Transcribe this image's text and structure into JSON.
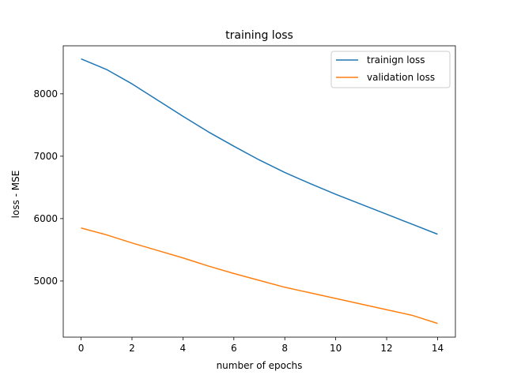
{
  "chart_data": {
    "type": "line",
    "title": "training loss",
    "xlabel": "number of epochs",
    "ylabel": "loss - MSE",
    "xlim": [
      -0.7,
      14.7
    ],
    "ylim": [
      4100,
      8770
    ],
    "xticks": [
      0,
      2,
      4,
      6,
      8,
      10,
      12,
      14
    ],
    "yticks": [
      5000,
      6000,
      7000,
      8000
    ],
    "grid": false,
    "legend_position": "top-right",
    "x": [
      0,
      1,
      2,
      3,
      4,
      5,
      6,
      7,
      8,
      9,
      10,
      11,
      12,
      13,
      14
    ],
    "series": [
      {
        "name": "trainign loss",
        "color": "#1f77b4",
        "values": [
          8560,
          8390,
          8160,
          7900,
          7640,
          7390,
          7160,
          6940,
          6740,
          6560,
          6390,
          6230,
          6070,
          5910,
          5750
        ]
      },
      {
        "name": "validation loss",
        "color": "#ff7f0e",
        "values": [
          5850,
          5740,
          5610,
          5490,
          5370,
          5240,
          5120,
          5010,
          4900,
          4810,
          4720,
          4630,
          4540,
          4450,
          4320
        ]
      }
    ]
  }
}
